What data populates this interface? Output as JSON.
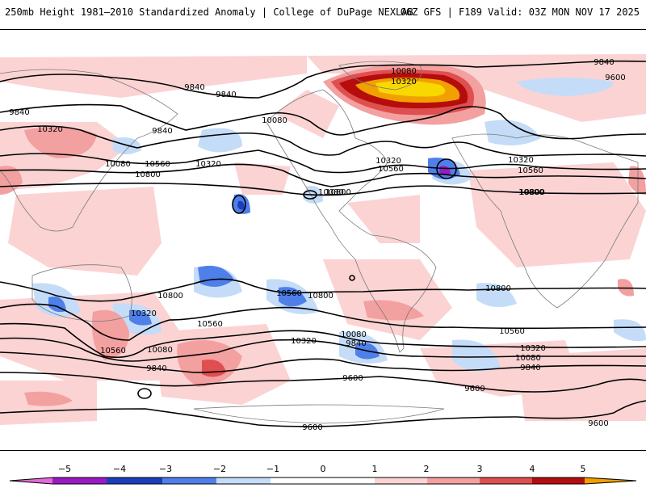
{
  "header": {
    "title_left": "250mb Height 1981–2010 Standardized Anomaly | College of DuPage NEXLAB",
    "title_right": "06Z GFS | F189 Valid: 03Z MON NOV 17 2025"
  },
  "colors": {
    "neg5": "#e36bd8",
    "neg4": "#9b19c4",
    "neg3": "#1a3fbd",
    "neg2": "#4f7fe8",
    "neg1": "#c4dcf8",
    "zero": "#ffffff",
    "pos1": "#fbd3d3",
    "pos2": "#f3a0a0",
    "pos3": "#e04f4f",
    "pos4": "#b50c0c",
    "pos5": "#f2a000",
    "pos6": "#f8d800",
    "land": "#8a8a8a",
    "contour": "#000000"
  },
  "colorbar": {
    "ticks": [
      "−5",
      "−4",
      "−3",
      "−2",
      "−1",
      "0",
      "1",
      "2",
      "3",
      "4",
      "5"
    ]
  },
  "contour_labels": [
    {
      "id": "l1",
      "text": "9840"
    },
    {
      "id": "l2",
      "text": "9840"
    },
    {
      "id": "l3",
      "text": "9840"
    },
    {
      "id": "l4",
      "text": "9840"
    },
    {
      "id": "l5",
      "text": "10080"
    },
    {
      "id": "l6",
      "text": "10080"
    },
    {
      "id": "l7",
      "text": "10320"
    },
    {
      "id": "l8",
      "text": "10320"
    },
    {
      "id": "l9",
      "text": "10560"
    },
    {
      "id": "l10",
      "text": "10800"
    },
    {
      "id": "l11",
      "text": "10080"
    },
    {
      "id": "l12",
      "text": "10320"
    },
    {
      "id": "l13",
      "text": "10560"
    },
    {
      "id": "l14",
      "text": "10800"
    },
    {
      "id": "l15",
      "text": "10320"
    },
    {
      "id": "l16",
      "text": "10560"
    },
    {
      "id": "l17",
      "text": "10800"
    },
    {
      "id": "l18",
      "text": "9840"
    },
    {
      "id": "l19",
      "text": "9600"
    },
    {
      "id": "l20",
      "text": "10800"
    },
    {
      "id": "l21",
      "text": "10320"
    },
    {
      "id": "l22",
      "text": "10560"
    },
    {
      "id": "l23",
      "text": "10080"
    },
    {
      "id": "l24",
      "text": "9840"
    },
    {
      "id": "l25",
      "text": "10800"
    },
    {
      "id": "l26",
      "text": "10560"
    },
    {
      "id": "l27",
      "text": "10320"
    },
    {
      "id": "l28",
      "text": "10560"
    },
    {
      "id": "l29",
      "text": "10080"
    },
    {
      "id": "l30",
      "text": "9840"
    },
    {
      "id": "l31",
      "text": "10800"
    },
    {
      "id": "l32",
      "text": "10560"
    },
    {
      "id": "l33",
      "text": "10320"
    },
    {
      "id": "l34",
      "text": "10080"
    },
    {
      "id": "l35",
      "text": "9840"
    },
    {
      "id": "l36",
      "text": "9600"
    },
    {
      "id": "l37",
      "text": "9600"
    },
    {
      "id": "l38",
      "text": "9600"
    },
    {
      "id": "l39",
      "text": "9600"
    },
    {
      "id": "l40",
      "text": "10800"
    },
    {
      "id": "l41",
      "text": "10080"
    },
    {
      "id": "l42",
      "text": "10320"
    }
  ]
}
